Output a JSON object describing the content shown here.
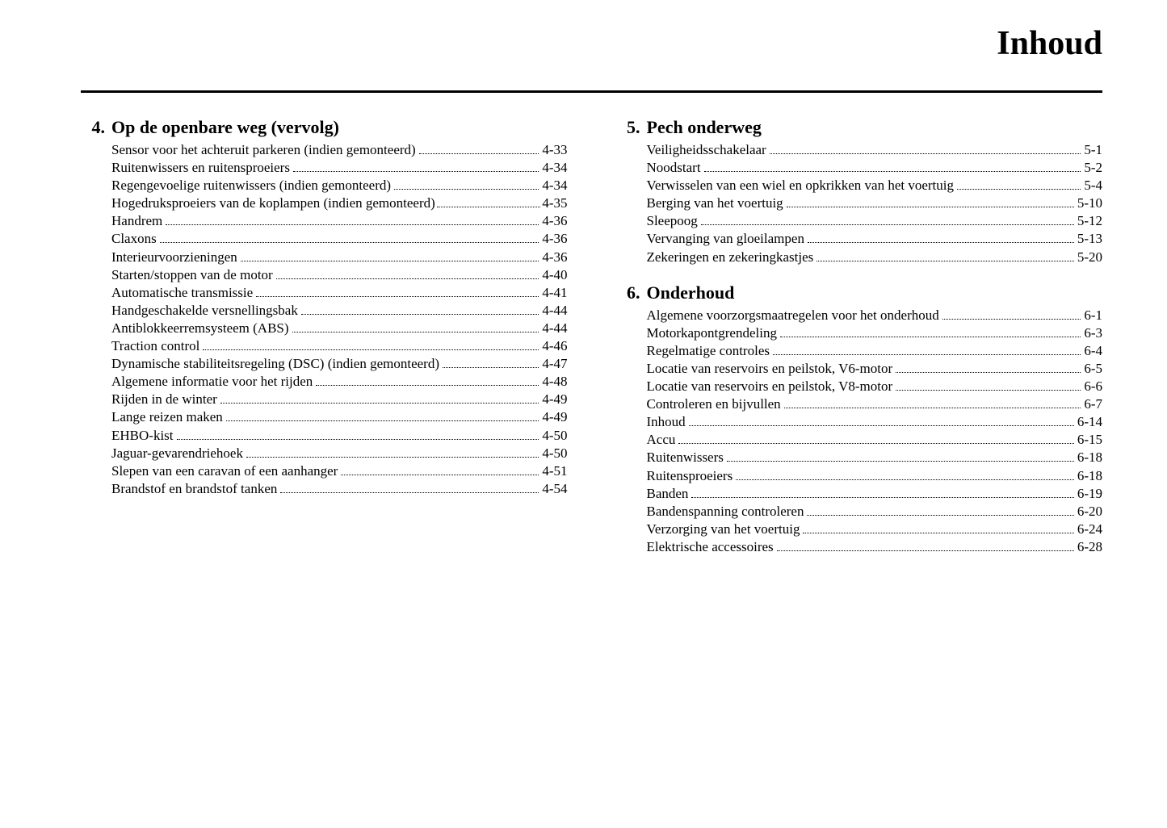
{
  "page_title": "Inhoud",
  "sections": [
    {
      "number": "4.",
      "title": "Op de openbare weg (vervolg)",
      "column": 0,
      "entries": [
        {
          "label": "Sensor voor het achteruit parkeren (indien gemonteerd)",
          "page": "4-33"
        },
        {
          "label": "Ruitenwissers en ruitensproeiers",
          "page": "4-34"
        },
        {
          "label": "Regengevoelige ruitenwissers (indien gemonteerd)",
          "page": "4-34"
        },
        {
          "label": "Hogedruksproeiers van de koplampen (indien gemonteerd)",
          "page": "4-35",
          "tight": true
        },
        {
          "label": "Handrem",
          "page": "4-36"
        },
        {
          "label": "Claxons",
          "page": "4-36"
        },
        {
          "label": "Interieurvoorzieningen",
          "page": "4-36"
        },
        {
          "label": "Starten/stoppen van de motor",
          "page": "4-40"
        },
        {
          "label": "Automatische transmissie",
          "page": "4-41"
        },
        {
          "label": "Handgeschakelde versnellingsbak",
          "page": "4-44"
        },
        {
          "label": "Antiblokkeerremsysteem (ABS)",
          "page": "4-44"
        },
        {
          "label": "Traction control",
          "page": "4-46"
        },
        {
          "label": "Dynamische stabiliteitsregeling (DSC) (indien gemonteerd)",
          "page": "4-47"
        },
        {
          "label": "Algemene informatie voor het rijden",
          "page": "4-48"
        },
        {
          "label": "Rijden in de winter",
          "page": "4-49"
        },
        {
          "label": "Lange reizen maken",
          "page": "4-49"
        },
        {
          "label": "EHBO-kist",
          "page": "4-50"
        },
        {
          "label": "Jaguar-gevarendriehoek",
          "page": "4-50"
        },
        {
          "label": "Slepen van een caravan of een aanhanger",
          "page": "4-51"
        },
        {
          "label": "Brandstof en brandstof tanken",
          "page": "4-54"
        }
      ]
    },
    {
      "number": "5.",
      "title": "Pech onderweg",
      "column": 1,
      "entries": [
        {
          "label": "Veiligheidsschakelaar",
          "page": "5-1"
        },
        {
          "label": "Noodstart",
          "page": "5-2"
        },
        {
          "label": "Verwisselen van een wiel en opkrikken van het voertuig",
          "page": "5-4"
        },
        {
          "label": "Berging van het voertuig",
          "page": "5-10"
        },
        {
          "label": "Sleepoog",
          "page": "5-12"
        },
        {
          "label": "Vervanging van gloeilampen",
          "page": "5-13"
        },
        {
          "label": "Zekeringen en zekeringkastjes",
          "page": "5-20"
        }
      ]
    },
    {
      "number": "6.",
      "title": "Onderhoud",
      "column": 1,
      "entries": [
        {
          "label": "Algemene voorzorgsmaatregelen voor het onderhoud",
          "page": "6-1"
        },
        {
          "label": "Motorkapontgrendeling",
          "page": "6-3"
        },
        {
          "label": "Regelmatige controles",
          "page": "6-4"
        },
        {
          "label": "Locatie van reservoirs en peilstok, V6-motor",
          "page": "6-5"
        },
        {
          "label": "Locatie van reservoirs en peilstok, V8-motor",
          "page": "6-6"
        },
        {
          "label": "Controleren en bijvullen",
          "page": "6-7"
        },
        {
          "label": "Inhoud",
          "page": "6-14"
        },
        {
          "label": "Accu",
          "page": "6-15"
        },
        {
          "label": "Ruitenwissers",
          "page": "6-18"
        },
        {
          "label": "Ruitensproeiers",
          "page": "6-18"
        },
        {
          "label": "Banden",
          "page": "6-19"
        },
        {
          "label": "Bandenspanning controleren",
          "page": "6-20"
        },
        {
          "label": "Verzorging van het voertuig",
          "page": "6-24"
        },
        {
          "label": "Elektrische accessoires",
          "page": "6-28"
        }
      ]
    }
  ]
}
